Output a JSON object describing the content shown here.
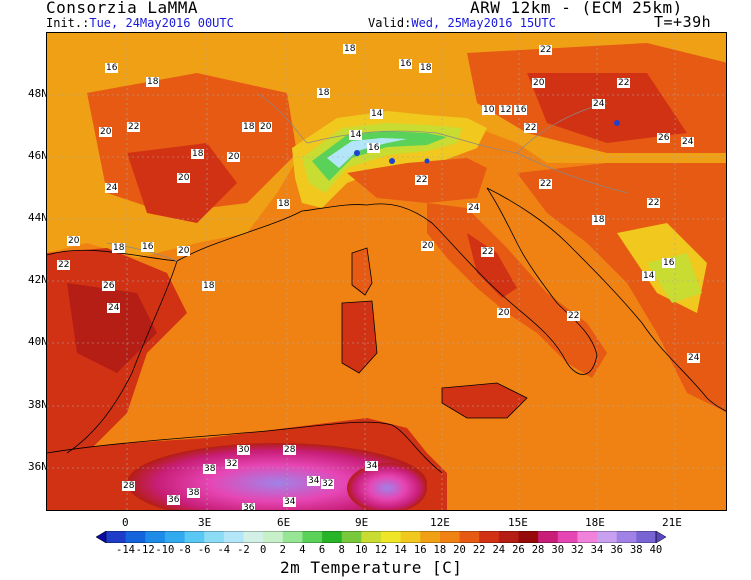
{
  "header": {
    "institution": "Consorzia LaMMA",
    "model": "ARW 12km - (ECM 25km)",
    "init_label": "Init.:",
    "init_value": "Tue, 24May2016 00UTC",
    "valid_label": "Valid:",
    "valid_value": "Wed, 25May2016 15UTC",
    "lead_time": "T=+39h"
  },
  "map": {
    "lat_labels": [
      "48N",
      "46N",
      "44N",
      "42N",
      "40N",
      "38N",
      "36N"
    ],
    "lon_labels": [
      "0",
      "3E",
      "6E",
      "9E",
      "12E",
      "15E",
      "18E",
      "21E"
    ],
    "values": [
      "18",
      "16",
      "18",
      "22",
      "18",
      "16",
      "18",
      "20",
      "22",
      "24",
      "14",
      "10",
      "12",
      "16",
      "20",
      "22",
      "18",
      "20",
      "22",
      "14",
      "16",
      "18",
      "20",
      "24",
      "22",
      "20",
      "18",
      "26",
      "24",
      "22",
      "20",
      "18",
      "16",
      "22",
      "20",
      "24",
      "26",
      "18",
      "20",
      "22",
      "24",
      "22",
      "18",
      "14",
      "16",
      "20",
      "22",
      "24",
      "28",
      "30",
      "32",
      "34",
      "36",
      "38",
      "32",
      "34",
      "28",
      "36",
      "38",
      "34"
    ]
  },
  "colorbar": {
    "title": "2m Temperature [C]",
    "labels": [
      "-14",
      "-12",
      "-10",
      "-8",
      "-6",
      "-4",
      "-2",
      "0",
      "2",
      "4",
      "6",
      "8",
      "10",
      "12",
      "14",
      "16",
      "18",
      "20",
      "22",
      "24",
      "26",
      "28",
      "30",
      "32",
      "34",
      "36",
      "38",
      "40"
    ],
    "colors": [
      "#0a0aa0",
      "#1e3cc8",
      "#1464dc",
      "#1e8ce6",
      "#32aaf0",
      "#5ac8f5",
      "#8cdcf5",
      "#b4e6fa",
      "#d2f0e6",
      "#c8f0c8",
      "#96e696",
      "#5ad25a",
      "#28b428",
      "#78c83c",
      "#c8dc32",
      "#f0e628",
      "#f0c81e",
      "#f0a014",
      "#f08214",
      "#e65a14",
      "#d23214",
      "#b41e14",
      "#960a0a",
      "#c81e78",
      "#e646b4",
      "#f082dc",
      "#c8a0f0",
      "#a082e6",
      "#7864d2",
      "#5a46be"
    ]
  }
}
